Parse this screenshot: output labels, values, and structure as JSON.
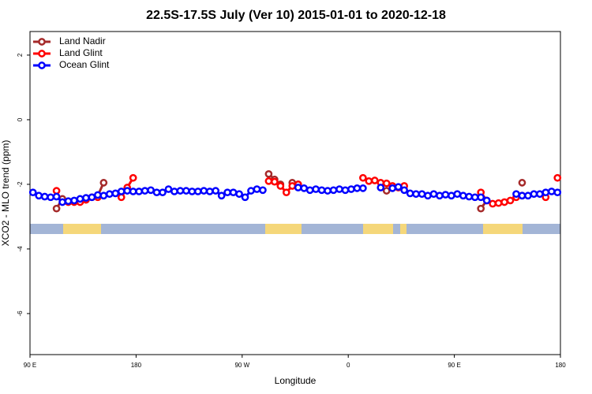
{
  "chart_data": {
    "type": "line",
    "title": "22.5S-17.5S July (Ver 10)   2015-01-01 to 2020-12-18",
    "x_label": "Longitude",
    "y_label": "XCO2 - MLO trend (ppm)",
    "legend": "topleft",
    "xlim": [
      90,
      540
    ],
    "xticks": [
      {
        "value": 90,
        "label": "90 E"
      },
      180,
      {
        "value": 270,
        "label": "90 W"
      },
      {
        "value": 360,
        "label": "0"
      },
      {
        "value": 450,
        "label": "90 E"
      },
      {
        "value": 540,
        "label": "180"
      }
    ],
    "ylim": [
      -7.27,
      2.73
    ],
    "yticks": [
      -6,
      -4,
      -2,
      0,
      2
    ],
    "x": [
      92.5,
      97.5,
      102.5,
      107.5,
      112.5,
      117.5,
      122.5,
      127.5,
      132.5,
      137.5,
      142.5,
      147.5,
      152.5,
      157.5,
      162.5,
      167.5,
      172.5,
      177.5,
      182.5,
      187.5,
      192.5,
      197.5,
      202.5,
      207.5,
      212.5,
      217.5,
      222.5,
      227.5,
      232.5,
      237.5,
      242.5,
      247.5,
      252.5,
      257.5,
      262.5,
      267.5,
      272.5,
      277.5,
      282.5,
      287.5,
      292.5,
      297.5,
      302.5,
      307.5,
      312.5,
      317.5,
      322.5,
      327.5,
      332.5,
      337.5,
      342.5,
      347.5,
      352.5,
      357.5,
      362.5,
      367.5,
      372.5,
      377.5,
      382.5,
      387.5,
      392.5,
      397.5,
      402.5,
      407.5,
      412.5,
      417.5,
      422.5,
      427.5,
      432.5,
      437.5,
      442.5,
      447.5,
      452.5,
      457.5,
      462.5,
      467.5,
      472.5,
      477.5,
      482.5,
      487.5,
      492.5,
      497.5,
      502.5,
      507.5,
      512.5,
      517.5,
      522.5,
      527.5,
      532.5,
      537.5
    ],
    "series": [
      {
        "name": "Land Nadir",
        "color": "#a52a2a",
        "values": [
          null,
          null,
          null,
          null,
          -2.75,
          -2.45,
          null,
          null,
          null,
          null,
          null,
          -2.35,
          -1.95,
          null,
          null,
          null,
          null,
          null,
          null,
          null,
          null,
          null,
          null,
          null,
          null,
          null,
          null,
          null,
          null,
          null,
          null,
          null,
          null,
          null,
          null,
          null,
          null,
          null,
          null,
          null,
          -1.68,
          -1.85,
          -2.0,
          null,
          -1.95,
          -2.0,
          null,
          null,
          null,
          null,
          null,
          null,
          null,
          null,
          null,
          null,
          null,
          null,
          null,
          null,
          -2.2,
          null,
          null,
          null,
          null,
          null,
          null,
          null,
          null,
          null,
          null,
          null,
          null,
          null,
          null,
          null,
          -2.75,
          -2.5,
          null,
          null,
          null,
          null,
          null,
          -1.95,
          null,
          null,
          null,
          null,
          null,
          null
        ]
      },
      {
        "name": "Land Glint",
        "color": "#ff0000",
        "values": [
          null,
          null,
          null,
          null,
          -2.2,
          null,
          -2.55,
          -2.55,
          -2.55,
          -2.48,
          -2.4,
          -2.4,
          null,
          null,
          null,
          -2.4,
          -2.1,
          -1.8,
          null,
          null,
          null,
          null,
          null,
          null,
          null,
          null,
          null,
          null,
          null,
          null,
          null,
          null,
          null,
          null,
          null,
          null,
          null,
          null,
          null,
          null,
          -1.9,
          -1.92,
          -2.05,
          -2.25,
          -2.05,
          -2.0,
          null,
          null,
          null,
          null,
          null,
          null,
          null,
          null,
          null,
          null,
          -1.8,
          -1.9,
          -1.88,
          -1.95,
          -1.97,
          -2.05,
          -2.1,
          -2.05,
          null,
          null,
          null,
          null,
          null,
          null,
          null,
          null,
          null,
          null,
          null,
          null,
          -2.25,
          -2.5,
          -2.6,
          -2.58,
          -2.55,
          -2.5,
          -2.4,
          -2.35,
          null,
          null,
          null,
          -2.4,
          null,
          -1.8
        ]
      },
      {
        "name": "Ocean Glint",
        "color": "#0000ff",
        "values": [
          -2.25,
          -2.35,
          -2.38,
          -2.4,
          -2.38,
          -2.55,
          -2.52,
          -2.5,
          -2.45,
          -2.42,
          -2.4,
          -2.33,
          -2.35,
          -2.3,
          -2.28,
          -2.22,
          -2.2,
          -2.22,
          -2.22,
          -2.2,
          -2.18,
          -2.25,
          -2.25,
          -2.15,
          -2.22,
          -2.2,
          -2.2,
          -2.22,
          -2.22,
          -2.2,
          -2.22,
          -2.2,
          -2.35,
          -2.25,
          -2.25,
          -2.3,
          -2.4,
          -2.2,
          -2.15,
          -2.18,
          null,
          null,
          null,
          null,
          null,
          -2.1,
          -2.12,
          -2.18,
          -2.15,
          -2.18,
          -2.2,
          -2.18,
          -2.15,
          -2.18,
          -2.15,
          -2.12,
          -2.12,
          null,
          null,
          -2.1,
          null,
          -2.12,
          -2.08,
          -2.18,
          -2.28,
          -2.3,
          -2.3,
          -2.35,
          -2.3,
          -2.35,
          -2.32,
          -2.35,
          -2.3,
          -2.35,
          -2.38,
          -2.4,
          -2.4,
          -2.5,
          null,
          null,
          null,
          null,
          -2.3,
          -2.35,
          -2.35,
          -2.3,
          -2.3,
          -2.25,
          -2.22,
          -2.25
        ]
      }
    ]
  }
}
